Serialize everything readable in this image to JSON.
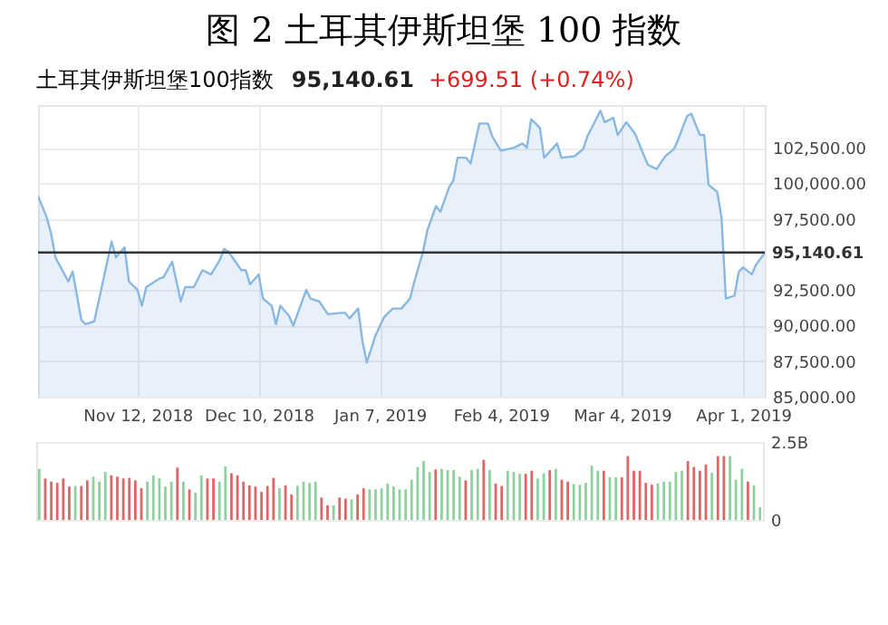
{
  "chart_data": [
    {
      "type": "area",
      "title": "图 2  土耳其伊斯坦堡 100 指数",
      "subtitle": "土耳其伊斯坦堡100指数",
      "annotations": [
        "95,140.61",
        "+699.51 (+0.74%)"
      ],
      "x": [
        "2018-10-20",
        "2018-10-22",
        "2018-10-23",
        "2018-10-24",
        "2018-10-27",
        "2018-10-28",
        "2018-10-30",
        "2018-10-31",
        "2018-11-02",
        "2018-11-04",
        "2018-11-06",
        "2018-11-07",
        "2018-11-09",
        "2018-11-10",
        "2018-11-12",
        "2018-11-13",
        "2018-11-14",
        "2018-11-17",
        "2018-11-18",
        "2018-11-20",
        "2018-11-22",
        "2018-11-23",
        "2018-11-25",
        "2018-11-27",
        "2018-11-29",
        "2018-12-01",
        "2018-12-02",
        "2018-12-03",
        "2018-12-06",
        "2018-12-07",
        "2018-12-08",
        "2018-12-10",
        "2018-12-11",
        "2018-12-13",
        "2018-12-14",
        "2018-12-15",
        "2018-12-17",
        "2018-12-18",
        "2018-12-21",
        "2018-12-22",
        "2018-12-24",
        "2018-12-26",
        "2018-12-29",
        "2018-12-30",
        "2018-12-31",
        "2019-01-02",
        "2019-01-03",
        "2019-01-04",
        "2019-01-06",
        "2019-01-08",
        "2019-01-10",
        "2019-01-12",
        "2019-01-14",
        "2019-01-15",
        "2019-01-17",
        "2019-01-18",
        "2019-01-20",
        "2019-01-21",
        "2019-01-23",
        "2019-01-24",
        "2019-01-25",
        "2019-01-27",
        "2019-01-28",
        "2019-01-30",
        "2019-02-01",
        "2019-02-02",
        "2019-02-04",
        "2019-02-07",
        "2019-02-09",
        "2019-02-10",
        "2019-02-11",
        "2019-02-13",
        "2019-02-14",
        "2019-02-17",
        "2019-02-18",
        "2019-02-21",
        "2019-02-23",
        "2019-02-24",
        "2019-02-27",
        "2019-02-28",
        "2019-03-02",
        "2019-03-03",
        "2019-03-05",
        "2019-03-07",
        "2019-03-09",
        "2019-03-10",
        "2019-03-12",
        "2019-03-14",
        "2019-03-16",
        "2019-03-17",
        "2019-03-19",
        "2019-03-20",
        "2019-03-22",
        "2019-03-23",
        "2019-03-24",
        "2019-03-26",
        "2019-03-27",
        "2019-03-28",
        "2019-03-30",
        "2019-03-31",
        "2019-04-01",
        "2019-04-03",
        "2019-04-04",
        "2019-04-06"
      ],
      "series": [
        {
          "color": "#8ab8e0",
          "values": [
            99100,
            97600,
            96500,
            94800,
            93100,
            93800,
            90400,
            90100,
            90300,
            93100,
            95900,
            94800,
            95500,
            93100,
            92500,
            91400,
            92700,
            93300,
            93400,
            94500,
            91700,
            92700,
            92700,
            93900,
            93600,
            94600,
            95400,
            95200,
            93900,
            93900,
            92900,
            93600,
            91900,
            91400,
            90100,
            91400,
            90700,
            90000,
            92500,
            91900,
            91700,
            90800,
            90900,
            90900,
            90500,
            91200,
            88900,
            87400,
            89300,
            90600,
            91200,
            91200,
            91900,
            93100,
            95200,
            96700,
            98400,
            98000,
            99700,
            100200,
            101800,
            101800,
            101400,
            104200,
            104200,
            103300,
            102300,
            102500,
            102800,
            102500,
            104500,
            103900,
            101800,
            102800,
            101800,
            101900,
            102400,
            103300,
            105100,
            104300,
            104600,
            103400,
            104300,
            103500,
            102000,
            101300,
            101000,
            101900,
            102400,
            103100,
            104700,
            104900,
            103400,
            103400,
            99900,
            99400,
            97600,
            91900,
            92100,
            93800,
            94100,
            93600,
            94300,
            95100
          ]
        }
      ],
      "xlim": [
        "2018-10-20",
        "2019-04-06"
      ],
      "xticks": [
        {
          "value": "2018-11-12",
          "label": "Nov 12, 2018"
        },
        {
          "value": "2018-12-10",
          "label": "Dec 10, 2018"
        },
        {
          "value": "2019-01-07",
          "label": "Jan 7, 2019"
        },
        {
          "value": "2019-02-04",
          "label": "Feb 4, 2019"
        },
        {
          "value": "2019-03-04",
          "label": "Mar 4, 2019"
        },
        {
          "value": "2019-04-01",
          "label": "Apr 1, 2019"
        }
      ],
      "ylim": [
        85000,
        105500
      ],
      "yticks": [
        {
          "value": 85000,
          "label": "85,000.00"
        },
        {
          "value": 87500,
          "label": "87,500.00"
        },
        {
          "value": 90000,
          "label": "90,000.00"
        },
        {
          "value": 92500,
          "label": "92,500.00"
        },
        {
          "value": 97500,
          "label": "97,500.00"
        },
        {
          "value": 100000,
          "label": "100,000.00"
        },
        {
          "value": 102500,
          "label": "102,500.00"
        }
      ],
      "grid": true,
      "ref_lines": [
        {
          "axis": "y",
          "value": 95140.61,
          "label": "95,140.61",
          "color": "#333333"
        }
      ]
    },
    {
      "type": "bar",
      "categories": [
        null,
        null,
        null,
        null,
        null,
        null,
        null,
        null,
        null,
        null,
        null,
        null,
        null,
        null,
        null,
        null,
        null,
        null,
        null,
        null,
        null,
        null,
        null,
        null,
        null,
        null,
        null,
        null,
        null,
        null,
        null,
        null,
        null,
        null,
        null,
        null,
        null,
        null,
        null,
        null,
        null,
        null,
        null,
        null,
        null,
        null,
        null,
        null,
        null,
        null,
        null,
        null,
        null,
        null,
        null,
        null,
        null,
        null,
        null,
        null,
        null,
        null,
        null,
        null,
        null,
        null,
        null,
        null,
        null,
        null,
        null,
        null,
        null,
        null,
        null,
        null,
        null,
        null,
        null,
        null,
        null,
        null,
        null,
        null,
        null,
        null,
        null,
        null,
        null,
        null,
        null,
        null,
        null,
        null,
        null,
        null,
        null,
        null,
        null,
        null,
        null,
        null,
        null,
        null,
        null,
        null,
        null,
        null,
        null,
        null,
        null,
        null,
        null,
        null,
        null,
        null,
        null,
        null,
        null,
        null,
        null
      ],
      "values": [
        1.64,
        1.33,
        1.23,
        1.19,
        1.33,
        1.07,
        1.09,
        1.09,
        1.27,
        1.39,
        1.23,
        1.54,
        1.43,
        1.39,
        1.33,
        1.35,
        1.27,
        1.02,
        1.23,
        1.43,
        1.33,
        1.07,
        1.23,
        1.68,
        1.23,
        0.98,
        0.88,
        1.43,
        1.33,
        1.33,
        1.23,
        1.72,
        1.5,
        1.43,
        1.23,
        1.11,
        1.07,
        0.9,
        1.09,
        1.35,
        1.02,
        1.11,
        0.82,
        1.09,
        1.23,
        1.19,
        1.23,
        0.72,
        0.47,
        0.47,
        0.72,
        0.68,
        0.66,
        0.82,
        1.02,
        0.98,
        0.98,
        1.02,
        1.17,
        1.07,
        0.98,
        0.98,
        1.29,
        1.7,
        1.89,
        1.54,
        1.62,
        1.64,
        1.6,
        1.6,
        1.39,
        1.27,
        1.6,
        1.64,
        1.93,
        1.6,
        1.17,
        1.09,
        1.58,
        1.54,
        1.48,
        1.48,
        1.58,
        1.33,
        1.5,
        1.6,
        1.64,
        1.29,
        1.23,
        1.15,
        1.13,
        1.19,
        1.74,
        1.58,
        1.58,
        1.37,
        1.37,
        1.37,
        2.05,
        1.58,
        1.58,
        1.19,
        1.13,
        1.17,
        1.23,
        1.23,
        1.54,
        1.58,
        1.89,
        1.7,
        1.58,
        1.78,
        1.52,
        2.05,
        2.05,
        2.05,
        1.29,
        1.64,
        1.23,
        1.11,
        0.41
      ],
      "colors": [
        "#8fd19e",
        "#e06666",
        "#e06666",
        "#e06666",
        "#e06666",
        "#e06666",
        "#8fd19e",
        "#e06666",
        "#e06666",
        "#8fd19e",
        "#8fd19e",
        "#8fd19e",
        "#e06666",
        "#e06666",
        "#e06666",
        "#e06666",
        "#e06666",
        "#e06666",
        "#8fd19e",
        "#8fd19e",
        "#8fd19e",
        "#8fd19e",
        "#8fd19e",
        "#e06666",
        "#8fd19e",
        "#e06666",
        "#8fd19e",
        "#8fd19e",
        "#e06666",
        "#e06666",
        "#8fd19e",
        "#8fd19e",
        "#e06666",
        "#e06666",
        "#e06666",
        "#e06666",
        "#e06666",
        "#e06666",
        "#e06666",
        "#e06666",
        "#8fd19e",
        "#e06666",
        "#e06666",
        "#8fd19e",
        "#8fd19e",
        "#8fd19e",
        "#8fd19e",
        "#e06666",
        "#e06666",
        "#8fd19e",
        "#e06666",
        "#e06666",
        "#8fd19e",
        "#e06666",
        "#e06666",
        "#8fd19e",
        "#8fd19e",
        "#8fd19e",
        "#8fd19e",
        "#8fd19e",
        "#8fd19e",
        "#8fd19e",
        "#8fd19e",
        "#8fd19e",
        "#8fd19e",
        "#8fd19e",
        "#e06666",
        "#8fd19e",
        "#8fd19e",
        "#8fd19e",
        "#8fd19e",
        "#e06666",
        "#8fd19e",
        "#8fd19e",
        "#e06666",
        "#8fd19e",
        "#e06666",
        "#e06666",
        "#8fd19e",
        "#8fd19e",
        "#8fd19e",
        "#e06666",
        "#e06666",
        "#8fd19e",
        "#8fd19e",
        "#e06666",
        "#8fd19e",
        "#e06666",
        "#e06666",
        "#8fd19e",
        "#8fd19e",
        "#8fd19e",
        "#8fd19e",
        "#8fd19e",
        "#e06666",
        "#8fd19e",
        "#8fd19e",
        "#e06666",
        "#e06666",
        "#e06666",
        "#e06666",
        "#e06666",
        "#e06666",
        "#8fd19e",
        "#8fd19e",
        "#8fd19e",
        "#8fd19e",
        "#8fd19e",
        "#e06666",
        "#e06666",
        "#e06666",
        "#e06666",
        "#8fd19e",
        "#e06666",
        "#e06666",
        "#8fd19e",
        "#8fd19e",
        "#8fd19e",
        "#e06666",
        "#8fd19e",
        "#8fd19e"
      ],
      "ylim": [
        0,
        2.5
      ],
      "yticks": [
        {
          "value": 0,
          "label": "0"
        },
        {
          "value": 2.5,
          "label": "2.5B"
        }
      ],
      "tick_labels": "y",
      "grid": "y"
    }
  ]
}
